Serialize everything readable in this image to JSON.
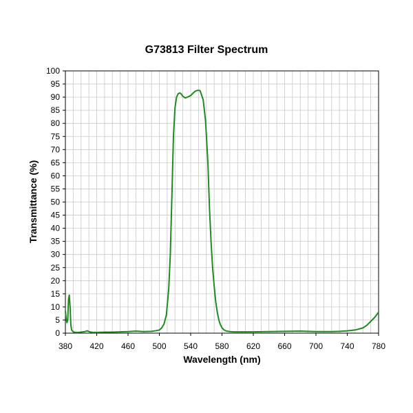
{
  "chart_data": {
    "type": "line",
    "title": "G73813 Filter Spectrum",
    "xlabel": "Wavelength (nm)",
    "ylabel": "Transmittance (%)",
    "xlim": [
      380,
      780
    ],
    "ylim": [
      0,
      100
    ],
    "x_ticks": [
      "380",
      "420",
      "460",
      "500",
      "540",
      "580",
      "620",
      "660",
      "700",
      "740",
      "780"
    ],
    "y_ticks": [
      "0",
      "5",
      "10",
      "15",
      "20",
      "25",
      "30",
      "35",
      "40",
      "45",
      "50",
      "55",
      "60",
      "65",
      "70",
      "75",
      "80",
      "85",
      "90",
      "95",
      "100"
    ],
    "grid": true,
    "legend": "none",
    "series": [
      {
        "color": "#1f8a1f",
        "x": [
          380,
          381,
          382,
          383,
          384,
          385,
          386,
          387,
          388,
          390,
          393,
          396,
          400,
          405,
          408,
          411,
          415,
          420,
          430,
          440,
          450,
          460,
          470,
          480,
          490,
          495,
          500,
          503,
          506,
          509,
          512,
          514,
          516,
          518,
          520,
          522,
          524,
          526,
          528,
          530,
          533,
          536,
          540,
          543,
          546,
          549,
          552,
          556,
          559,
          562,
          564,
          566,
          568,
          570,
          572,
          574,
          576,
          578,
          580,
          582,
          584,
          586,
          588,
          590,
          595,
          600,
          620,
          640,
          660,
          680,
          700,
          720,
          730,
          740,
          750,
          760,
          765,
          770,
          775,
          780
        ],
        "y": [
          8.5,
          5.5,
          4.0,
          5.0,
          13.0,
          14.5,
          10.0,
          3.0,
          1.2,
          0.5,
          0.3,
          0.3,
          0.4,
          0.6,
          0.9,
          0.5,
          0.3,
          0.3,
          0.4,
          0.4,
          0.5,
          0.6,
          0.8,
          0.6,
          0.7,
          0.9,
          1.2,
          2.0,
          3.5,
          7.0,
          17.0,
          30.0,
          52.0,
          75.0,
          86.0,
          90.0,
          91.3,
          91.6,
          91.2,
          90.3,
          89.7,
          90.0,
          90.6,
          91.5,
          92.3,
          92.6,
          92.5,
          89.0,
          81.0,
          65.0,
          48.0,
          35.0,
          25.0,
          18.0,
          12.0,
          8.0,
          5.0,
          3.2,
          2.1,
          1.4,
          1.0,
          0.8,
          0.7,
          0.6,
          0.5,
          0.5,
          0.5,
          0.6,
          0.7,
          0.8,
          0.6,
          0.6,
          0.7,
          0.9,
          1.2,
          2.0,
          3.0,
          4.5,
          6.0,
          8.0
        ]
      }
    ]
  }
}
